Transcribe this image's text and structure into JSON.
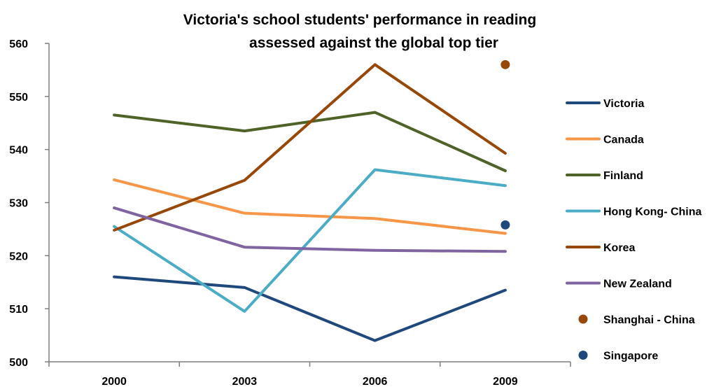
{
  "chart_data": {
    "type": "line",
    "title_lines": [
      "Victoria's school students' performance in reading",
      "assessed against the global top tier"
    ],
    "xlabel": "",
    "ylabel": "",
    "categories": [
      "2000",
      "2003",
      "2006",
      "2009"
    ],
    "ylim": [
      500,
      560
    ],
    "yticks": [
      500,
      510,
      520,
      530,
      540,
      550,
      560
    ],
    "grid": false,
    "legend": "right",
    "series": [
      {
        "name": "Victoria",
        "type": "line",
        "color": "#1f497d",
        "values": [
          516,
          514,
          504,
          513.5
        ]
      },
      {
        "name": "Canada",
        "type": "line",
        "color": "#f79646",
        "values": [
          534.3,
          528,
          527,
          524.2
        ]
      },
      {
        "name": "Finland",
        "type": "line",
        "color": "#4f6228",
        "values": [
          546.5,
          543.5,
          547,
          536
        ]
      },
      {
        "name": "Hong Kong- China",
        "type": "line",
        "color": "#4bacc6",
        "values": [
          525.5,
          509.5,
          536.2,
          533.2
        ]
      },
      {
        "name": "Korea",
        "type": "line",
        "color": "#974706",
        "values": [
          524.8,
          534.2,
          556,
          539.3
        ]
      },
      {
        "name": "New Zealand",
        "type": "line",
        "color": "#8064a2",
        "values": [
          529,
          521.6,
          521,
          520.8
        ]
      },
      {
        "name": "Shanghai - China",
        "type": "marker",
        "color": "#974706",
        "values": [
          null,
          null,
          null,
          556
        ]
      },
      {
        "name": "Singapore",
        "type": "marker",
        "color": "#1f497d",
        "values": [
          null,
          null,
          null,
          525.8
        ]
      }
    ]
  }
}
